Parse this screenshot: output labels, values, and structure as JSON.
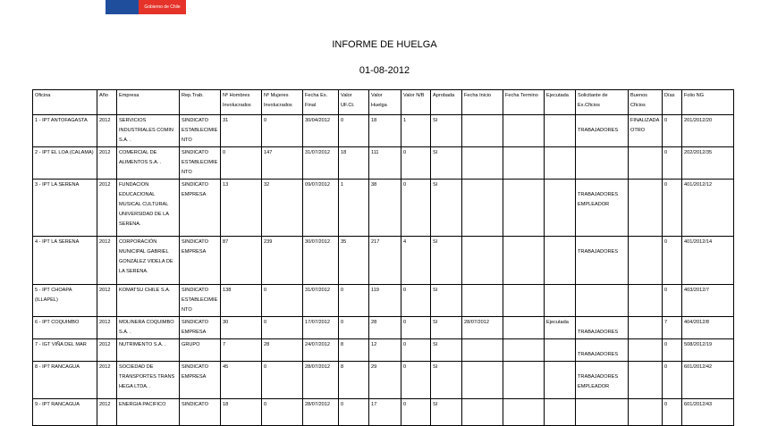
{
  "logo": {
    "text": "Gobierno de Chile",
    "colors": {
      "blue": "#1f4e9c",
      "red": "#e5332a"
    }
  },
  "title": "INFORME DE HUELGA",
  "date": "01-08-2012",
  "table": {
    "headers": [
      "Oficina",
      "Año",
      "Empresa",
      "Rep.Trab.",
      "Nº Hombres Involucrados",
      "Nº Mujeres Involucrados",
      "Fecha Ex. Final",
      "Valor UF.Ct.",
      "Valor Huelga",
      "Valor N/B",
      "Aprobada",
      "Fecha Inicio",
      "Fecha Termino",
      "Ejecutada",
      "Solicitante de Ex.Cficios",
      "Buenos Cficios",
      "Días",
      "Folio NG"
    ],
    "rows": [
      [
        "1 - IPT ANTOFAGASTA",
        "2012",
        "SERVICIOS INDUSTRIALES COMIN S.A. .",
        "SINDICATO ESTABLECIMIENTO",
        "31",
        "0",
        "30/04/2012",
        "0",
        "18",
        "1",
        "SI",
        "",
        "",
        "",
        "TRABAJADORES",
        "FINALIZADA OTRO",
        "0",
        "201/2012/20"
      ],
      [
        "2 - IPT EL LOA (CALAMA)",
        "2012",
        "COMERCIAL DE ALIMENTOS S.A. .",
        "SINDICATO ESTABLECIMIENTO",
        "0",
        "147",
        "31/07/2012",
        "18",
        "111",
        "0",
        "SI",
        "",
        "",
        "",
        "",
        "",
        "0",
        "202/2012/35"
      ],
      [
        "3 - IPT LA SERENA",
        "2012",
        "FUNDACION EDUCACIONAL MUSICAL CULTURAL UNIVERSIDAD DE LA SERENA.",
        "SINDICATO EMPRESA",
        "13",
        "32",
        "09/07/2012",
        "1",
        "38",
        "0",
        "SI",
        "",
        "",
        "",
        "TRABAJADORES EMPLEADOR",
        "",
        "0",
        "401/2012/12"
      ],
      [
        "4 - IPT LA SERENA",
        "2012",
        "CORPORACIÓN MUNICIPAL GABRIEL GONZÁLEZ VIDELA DE LA SERENA.",
        "SINDICATO EMPRESA",
        "87",
        "239",
        "30/07/2012",
        "35",
        "217",
        "4",
        "SI",
        "",
        "",
        "",
        "TRABAJADORES",
        "",
        "0",
        "401/2012/14"
      ],
      [
        "5 - IPT CHOAPA (ILLAPEL)",
        "2012",
        "KOMATSU CHILE S.A.",
        "SINDICATO ESTABLECIMIENTO",
        "138",
        "0",
        "31/07/2012",
        "0",
        "119",
        "0",
        "SI",
        "",
        "",
        "",
        "",
        "",
        "0",
        "403/2012/7"
      ],
      [
        "6 - IPT COQUIMBO",
        "2012",
        "MOLINERA COQUIMBO S.A. .",
        "SINDICATO EMPRESA",
        "30",
        "0",
        "17/07/2012",
        "0",
        "28",
        "0",
        "SI",
        "28/07/2012",
        "",
        "Ejecutada",
        "TRABAJADORES",
        "",
        "7",
        "404/2012/8"
      ],
      [
        "7 - IGT VIÑA DEL MAR",
        "2012",
        "NUTRIMENTO S.A. .",
        "GRUPO",
        "7",
        "28",
        "24/07/2012",
        "8",
        "12",
        "0",
        "SI",
        "",
        "",
        "",
        "TRABAJADORES",
        "",
        "0",
        "508/2012/19"
      ],
      [
        "8 - IPT RANCAGUA",
        "2012",
        "SOCIEDAD DE TRANSPORTES TRANS HEGA LTDA. .",
        "SINDICATO EMPRESA",
        "45",
        "0",
        "28/07/2012",
        "8",
        "29",
        "0",
        "SI",
        "",
        "",
        "",
        "TRABAJADORES EMPLEADOR",
        "",
        "0",
        "601/2012/42"
      ],
      [
        "9 - IPT RANCAGUA",
        "2012",
        "ENERGIA PACIFICO",
        "SINDICATO",
        "18",
        "0",
        "28/07/2012",
        "0",
        "17",
        "0",
        "SI",
        "",
        "",
        "",
        "",
        "",
        "0",
        "601/2012/43"
      ]
    ]
  }
}
